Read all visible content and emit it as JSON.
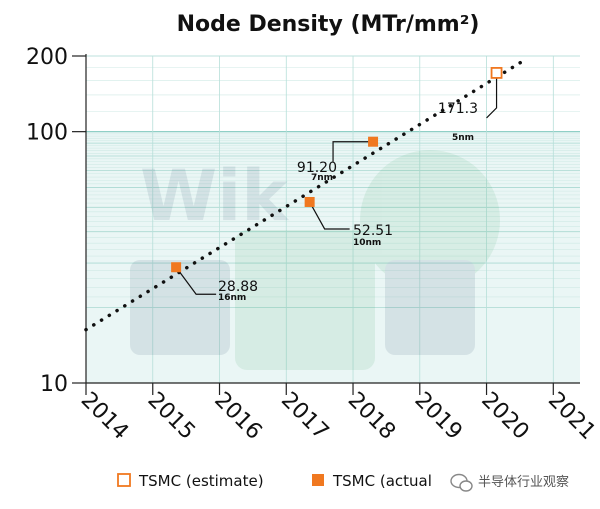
{
  "chart_data": {
    "type": "scatter",
    "title": "Node Density (MTr/mm²)",
    "y_scale": "log",
    "ylim": [
      10,
      200
    ],
    "xlim": [
      2014,
      2021.4
    ],
    "y_ticks": [
      "10",
      "100",
      "200"
    ],
    "x_ticks": [
      "2014",
      "2015",
      "2016",
      "2017",
      "2018",
      "2019",
      "2020",
      "2021"
    ],
    "series": [
      {
        "name": "TSMC (estimate)",
        "marker": "hollow-square",
        "color": "#f07820",
        "points": [
          {
            "x": 2020.15,
            "y": 171.3,
            "label": "171.3",
            "node": "5nm"
          }
        ]
      },
      {
        "name": "TSMC (actual",
        "marker": "filled-square",
        "color": "#f07820",
        "points": [
          {
            "x": 2015.35,
            "y": 28.88,
            "label": "28.88",
            "node": "16nm"
          },
          {
            "x": 2017.35,
            "y": 52.51,
            "label": "52.51",
            "node": "10nm"
          },
          {
            "x": 2018.3,
            "y": 91.2,
            "label": "91.20",
            "node": "7nm"
          }
        ]
      }
    ],
    "trend_line": {
      "style": "dotted",
      "color": "#111111",
      "from": {
        "x": 2014,
        "y": 16.3
      },
      "to": {
        "x": 2020.6,
        "y": 195
      }
    },
    "legend_position": "bottom",
    "grid": true
  },
  "watermark": {
    "text": "半导体行业观察",
    "icon": "wechat-icon"
  }
}
